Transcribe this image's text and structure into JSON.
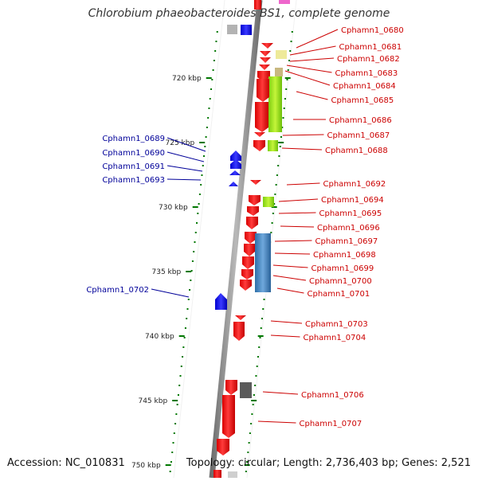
{
  "title": "Chlorobium phaeobacteroides BS1, complete genome",
  "footer": {
    "accession": "Accession: NC_010831",
    "summary": "Topology: circular; Length: 2,736,403 bp; Genes: 2,521"
  },
  "colors": {
    "plus_label": "#cc0000",
    "minus_label": "#000099",
    "cds": "#ff0000",
    "minus_cds": "#0000ff",
    "tick": "#007700"
  },
  "scale": {
    "unit": "kbp",
    "ticks": [
      {
        "kbp": 720,
        "label": "720 kbp"
      },
      {
        "kbp": 725,
        "label": "725 kbp"
      },
      {
        "kbp": 730,
        "label": "730 kbp"
      },
      {
        "kbp": 735,
        "label": "735 kbp"
      },
      {
        "kbp": 740,
        "label": "740 kbp"
      },
      {
        "kbp": 745,
        "label": "745 kbp"
      },
      {
        "kbp": 750,
        "label": "750 kbp"
      }
    ]
  },
  "genes_plus": [
    {
      "name": "Cphamn1_0680"
    },
    {
      "name": "Cphamn1_0681"
    },
    {
      "name": "Cphamn1_0682"
    },
    {
      "name": "Cphamn1_0683"
    },
    {
      "name": "Cphamn1_0684"
    },
    {
      "name": "Cphamn1_0685"
    },
    {
      "name": "Cphamn1_0686"
    },
    {
      "name": "Cphamn1_0687"
    },
    {
      "name": "Cphamn1_0688"
    },
    {
      "name": "Cphamn1_0692"
    },
    {
      "name": "Cphamn1_0694"
    },
    {
      "name": "Cphamn1_0695"
    },
    {
      "name": "Cphamn1_0696"
    },
    {
      "name": "Cphamn1_0697"
    },
    {
      "name": "Cphamn1_0698"
    },
    {
      "name": "Cphamn1_0699"
    },
    {
      "name": "Cphamn1_0700"
    },
    {
      "name": "Cphamn1_0701"
    },
    {
      "name": "Cphamn1_0703"
    },
    {
      "name": "Cphamn1_0704"
    },
    {
      "name": "Cphamn1_0706"
    },
    {
      "name": "Cphamn1_0707"
    }
  ],
  "genes_minus": [
    {
      "name": "Cphamn1_0689"
    },
    {
      "name": "Cphamn1_0690"
    },
    {
      "name": "Cphamn1_0691"
    },
    {
      "name": "Cphamn1_0693"
    },
    {
      "name": "Cphamn1_0702"
    }
  ]
}
